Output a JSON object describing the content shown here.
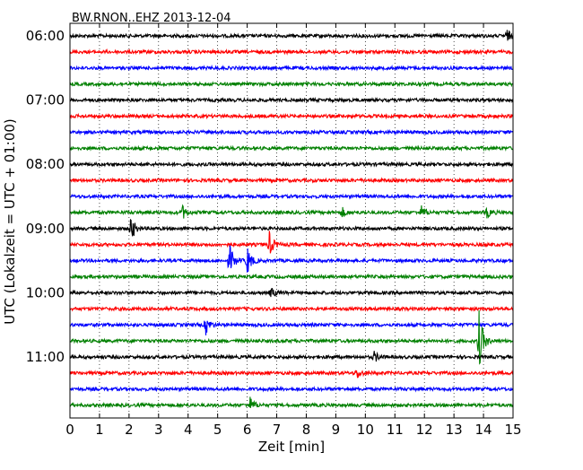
{
  "chart_data": {
    "type": "line",
    "title": "BW.RNON..EHZ 2013-12-04",
    "xlabel": "Zeit  [min]",
    "ylabel": "UTC (Lokalzeit = UTC + 01:00)",
    "xlim": [
      0,
      15
    ],
    "x_ticks": [
      "0",
      "1",
      "2",
      "3",
      "4",
      "5",
      "6",
      "7",
      "8",
      "9",
      "10",
      "11",
      "12",
      "13",
      "14",
      "15"
    ],
    "y_tick_labels": [
      "06:00",
      "07:00",
      "08:00",
      "09:00",
      "10:00",
      "11:00"
    ],
    "trace_start_times": [
      "06:00",
      "06:15",
      "06:30",
      "06:45",
      "07:00",
      "07:15",
      "07:30",
      "07:45",
      "08:00",
      "08:15",
      "08:30",
      "08:45",
      "09:00",
      "09:15",
      "09:30",
      "09:45",
      "10:00",
      "10:15",
      "10:30",
      "10:45",
      "11:00",
      "11:15",
      "11:30",
      "11:45"
    ],
    "trace_colors": [
      "#000000",
      "#ff0000",
      "#0000ff",
      "#008000"
    ],
    "grid": "vertical dotted",
    "events": [
      {
        "row": 0,
        "x": 14.8,
        "amp": 6
      },
      {
        "row": 11,
        "x": 3.8,
        "amp": 8
      },
      {
        "row": 11,
        "x": 9.2,
        "amp": 6
      },
      {
        "row": 11,
        "x": 11.9,
        "amp": 7
      },
      {
        "row": 11,
        "x": 14.1,
        "amp": 6
      },
      {
        "row": 12,
        "x": 2.05,
        "amp": 16
      },
      {
        "row": 13,
        "x": 6.75,
        "amp": 14
      },
      {
        "row": 14,
        "x": 5.4,
        "amp": 18
      },
      {
        "row": 14,
        "x": 6.0,
        "amp": 16
      },
      {
        "row": 16,
        "x": 6.8,
        "amp": 6
      },
      {
        "row": 18,
        "x": 4.6,
        "amp": 10
      },
      {
        "row": 19,
        "x": 13.85,
        "amp": 34
      },
      {
        "row": 20,
        "x": 10.3,
        "amp": 6
      },
      {
        "row": 21,
        "x": 9.7,
        "amp": 6
      },
      {
        "row": 23,
        "x": 6.1,
        "amp": 8
      }
    ]
  }
}
